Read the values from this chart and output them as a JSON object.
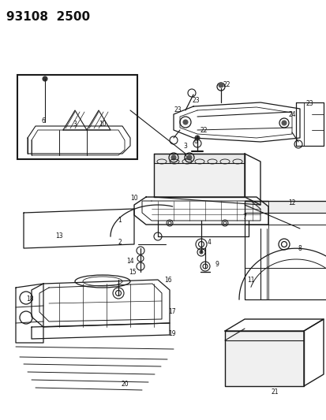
{
  "title": "93108  2500",
  "bg": "#f5f5f5",
  "lc": "#1a1a1a",
  "fig_w": 4.14,
  "fig_h": 5.33,
  "dpi": 100,
  "title_fs": 11
}
